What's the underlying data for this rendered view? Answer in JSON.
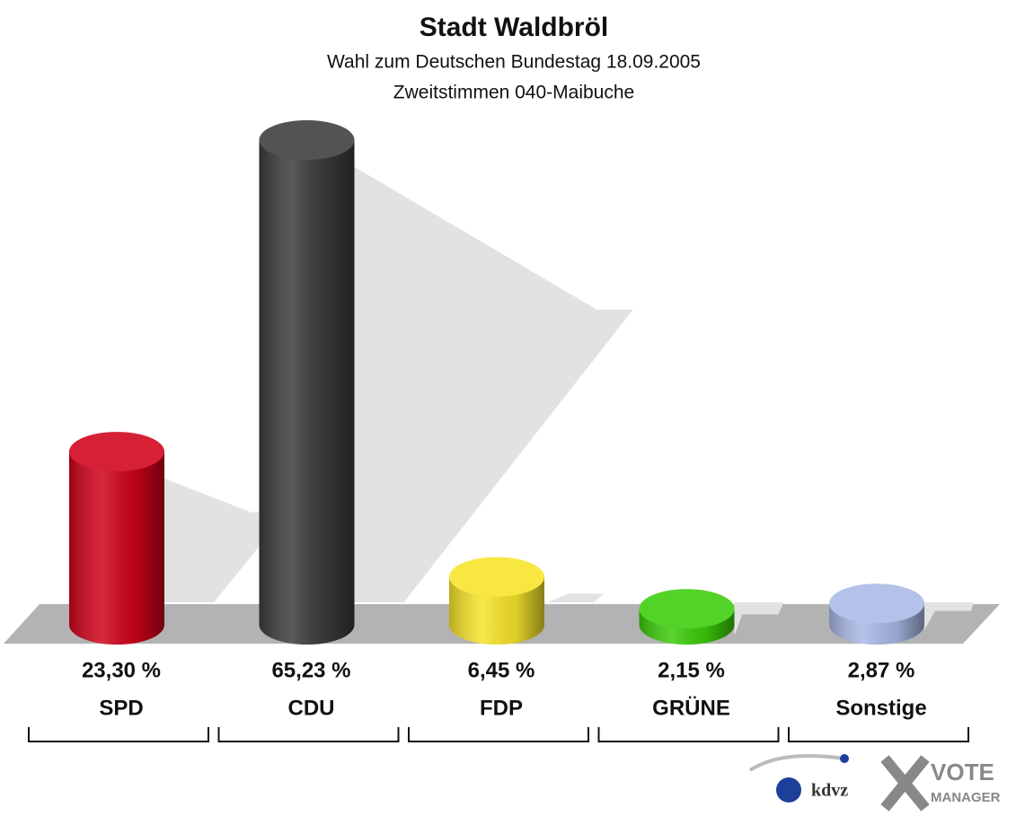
{
  "chart_data": {
    "type": "bar",
    "title": "Stadt Waldbröl",
    "subtitle": [
      "Wahl zum Deutschen Bundestag 18.09.2005",
      "Zweitstimmen 040-Maibuche"
    ],
    "categories": [
      "SPD",
      "CDU",
      "FDP",
      "GRÜNE",
      "Sonstige"
    ],
    "values": [
      23.3,
      65.23,
      6.45,
      2.15,
      2.87
    ],
    "value_labels": [
      "23,30 %",
      "65,23 %",
      "6,45 %",
      "2,15 %",
      "2,87 %"
    ],
    "colors": [
      "#d0021b",
      "#3c3c3c",
      "#f7e42a",
      "#3ccc0a",
      "#aab9e6"
    ],
    "logo": {
      "kdvz": "kdvz",
      "vote": "VOTE",
      "manager": "MANAGER"
    }
  }
}
